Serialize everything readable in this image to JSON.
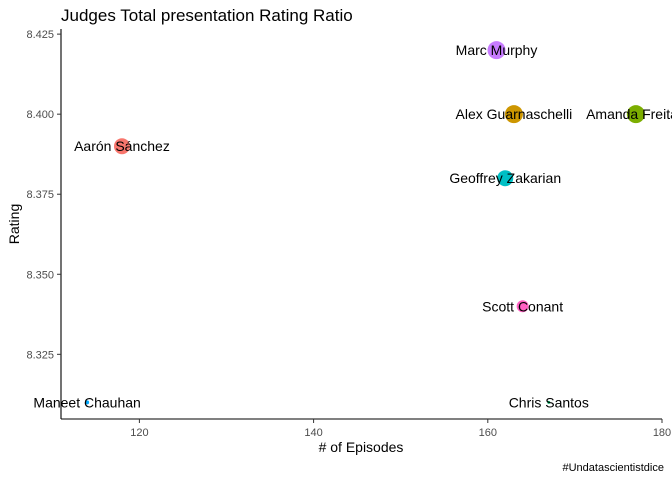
{
  "chart_data": {
    "type": "scatter",
    "title": "Judges Total presentation Rating Ratio",
    "xlabel": "# of Episodes",
    "ylabel": "Rating",
    "caption": "#Undatascientistdice",
    "xlim": [
      111,
      180
    ],
    "ylim": [
      8.3048,
      8.4266
    ],
    "x_ticks": [
      120,
      140,
      160,
      180
    ],
    "y_ticks": [
      8.325,
      8.35,
      8.375,
      8.4,
      8.425
    ],
    "x_tick_labels": [
      "120",
      "140",
      "160",
      "180"
    ],
    "y_tick_labels": [
      "8.325",
      "8.350",
      "8.375",
      "8.400",
      "8.425"
    ],
    "grid": false,
    "legend": "none",
    "points": [
      {
        "label": "Marc Murphy",
        "x": 161,
        "y": 8.42,
        "size": 9,
        "color": "#C77CFF"
      },
      {
        "label": "Alex Guarnaschelli",
        "x": 163,
        "y": 8.4,
        "size": 9,
        "color": "#CD9600"
      },
      {
        "label": "Amanda Freitag",
        "x": 177,
        "y": 8.4,
        "size": 9,
        "color": "#7CAE00"
      },
      {
        "label": "Aarón Sánchez",
        "x": 118,
        "y": 8.39,
        "size": 8,
        "color": "#F8766D"
      },
      {
        "label": "Geoffrey Zakarian",
        "x": 162,
        "y": 8.38,
        "size": 8,
        "color": "#00BFC4"
      },
      {
        "label": "Scott Conant",
        "x": 164,
        "y": 8.34,
        "size": 6,
        "color": "#FF61C3"
      },
      {
        "label": "Maneet Chauhan",
        "x": 114,
        "y": 8.31,
        "size": 2,
        "color": "#00A9FF"
      },
      {
        "label": "Chris Santos",
        "x": 167,
        "y": 8.31,
        "size": 1.5,
        "color": "#00BE67"
      }
    ]
  }
}
